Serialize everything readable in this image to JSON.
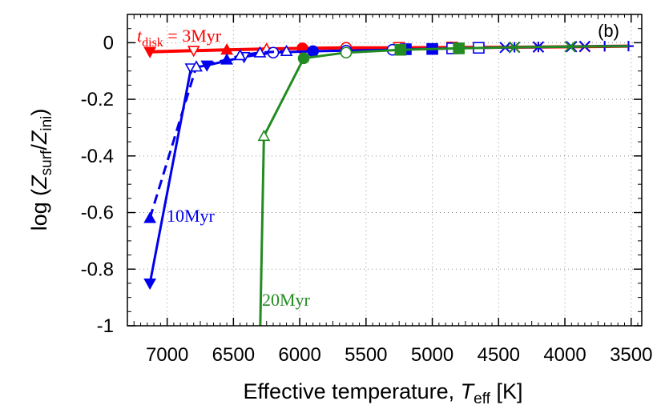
{
  "chart_data": {
    "type": "line",
    "panel_label": "(b)",
    "xlabel": {
      "text": "Effective temperature, ",
      "symbol": "T",
      "sub": "eff",
      "unit": " [K]"
    },
    "ylabel": {
      "prefix": "log (",
      "num": "Z",
      "num_sub": "surf",
      "slash": "/",
      "den": "Z",
      "den_sub": "ini",
      "suffix": ")"
    },
    "xlim": [
      7300,
      3420
    ],
    "ylim": [
      -1,
      0.1
    ],
    "x_reversed": true,
    "grid": "dotted",
    "x_ticks": [
      7000,
      6500,
      6000,
      5500,
      5000,
      4500,
      4000,
      3500
    ],
    "y_ticks": [
      0,
      -0.2,
      -0.4,
      -0.6,
      -0.8,
      -1
    ],
    "x_tick_labels": [
      "7000",
      "6500",
      "6000",
      "5500",
      "5000",
      "4500",
      "4000",
      "3500"
    ],
    "y_tick_labels": [
      "0",
      "-0.2",
      "-0.4",
      "-0.6",
      "-0.8",
      "-1"
    ],
    "colors": {
      "red": "#ff0000",
      "blue": "#0000ee",
      "green": "#228b22"
    },
    "annotations": [
      {
        "id": "disk3",
        "italic": "t",
        "sub": "disk",
        "rest": " = 3Myr",
        "color": "#ff0000"
      },
      {
        "id": "disk10",
        "text": "10Myr",
        "color": "#0000ee"
      },
      {
        "id": "disk20",
        "text": "20Myr",
        "color": "#228b22"
      }
    ],
    "series": [
      {
        "id": "red-solid",
        "color": "#ff0000",
        "dash": false,
        "width": 4,
        "x": [
          7130,
          6800,
          6550,
          6250,
          5980,
          5650,
          5250,
          4850,
          4380,
          4200,
          3850,
          3700,
          3520
        ],
        "y": [
          -0.032,
          -0.028,
          -0.025,
          -0.022,
          -0.02,
          -0.018,
          -0.018,
          -0.017,
          -0.016,
          -0.015,
          -0.014,
          -0.013,
          -0.012
        ],
        "markers": [
          "tri-down-filled",
          "tri-down-open",
          "tri-up-filled",
          "tri-up-open",
          "circle-filled",
          "circle-open",
          "square-open",
          "square-open",
          "x",
          "star",
          "x",
          "plus",
          "plus"
        ]
      },
      {
        "id": "blue-solid",
        "color": "#0000ee",
        "dash": false,
        "width": 3,
        "x": [
          7130,
          6820,
          6700,
          6420,
          6200,
          5900,
          5650,
          5300,
          5200,
          5000,
          4850,
          4650,
          4450,
          4380,
          4200,
          3950,
          3850,
          3700,
          3520
        ],
        "y": [
          -0.85,
          -0.09,
          -0.08,
          -0.05,
          -0.035,
          -0.03,
          -0.028,
          -0.025,
          -0.023,
          -0.022,
          -0.02,
          -0.018,
          -0.017,
          -0.016,
          -0.015,
          -0.014,
          -0.013,
          -0.012,
          -0.012
        ],
        "markers": [
          "tri-down-filled",
          "tri-down-open",
          "tri-down-filled",
          "tri-down-open",
          "circle-open",
          "circle-filled",
          "circle-open",
          "circle-open",
          "square-filled",
          "square-filled",
          "square-open",
          "square-open",
          "x",
          "star",
          "star",
          "x",
          "x",
          "plus",
          "plus"
        ]
      },
      {
        "id": "blue-dashed",
        "color": "#0000ee",
        "dash": true,
        "width": 3,
        "x": [
          7130,
          6780,
          6550,
          6450,
          6300,
          6100
        ],
        "y": [
          -0.62,
          -0.085,
          -0.06,
          -0.045,
          -0.035,
          -0.03
        ],
        "markers": [
          "tri-up-filled",
          "tri-up-open",
          "tri-up-filled",
          "tri-up-open",
          "tri-up-open",
          "tri-up-open"
        ]
      },
      {
        "id": "green-solid",
        "color": "#228b22",
        "dash": false,
        "width": 3,
        "x": [
          6300,
          6270,
          5970,
          5650,
          5240,
          4800,
          4380,
          3960,
          3520
        ],
        "y": [
          -1.05,
          -0.33,
          -0.055,
          -0.035,
          -0.025,
          -0.02,
          -0.016,
          -0.014,
          -0.012
        ],
        "markers": [
          "none",
          "tri-up-open",
          "circle-filled",
          "circle-open",
          "square-filled",
          "square-filled",
          "x",
          "x",
          "none"
        ]
      }
    ]
  }
}
